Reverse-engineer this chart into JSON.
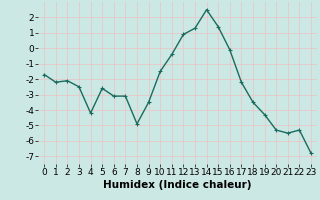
{
  "x": [
    0,
    1,
    2,
    3,
    4,
    5,
    6,
    7,
    8,
    9,
    10,
    11,
    12,
    13,
    14,
    15,
    16,
    17,
    18,
    19,
    20,
    21,
    22,
    23
  ],
  "y": [
    -1.7,
    -2.2,
    -2.1,
    -2.5,
    -4.2,
    -2.6,
    -3.1,
    -3.1,
    -4.9,
    -3.5,
    -1.5,
    -0.4,
    0.9,
    1.3,
    2.5,
    1.4,
    -0.1,
    -2.2,
    -3.5,
    -4.3,
    -5.3,
    -5.5,
    -5.3,
    -6.8
  ],
  "line_color": "#1a6b5e",
  "marker": "+",
  "marker_size": 3,
  "linewidth": 1.0,
  "xlabel": "Humidex (Indice chaleur)",
  "xlim": [
    -0.5,
    23.5
  ],
  "ylim": [
    -7.5,
    3.0
  ],
  "yticks": [
    -7,
    -6,
    -5,
    -4,
    -3,
    -2,
    -1,
    0,
    1,
    2
  ],
  "xticks": [
    0,
    1,
    2,
    3,
    4,
    5,
    6,
    7,
    8,
    9,
    10,
    11,
    12,
    13,
    14,
    15,
    16,
    17,
    18,
    19,
    20,
    21,
    22,
    23
  ],
  "bg_color": "#cce8e4",
  "grid_color": "#e8c8c8",
  "tick_label_fontsize": 6.5,
  "xlabel_fontsize": 7.5,
  "xlabel_fontweight": "bold",
  "marker_edge_width": 0.8
}
